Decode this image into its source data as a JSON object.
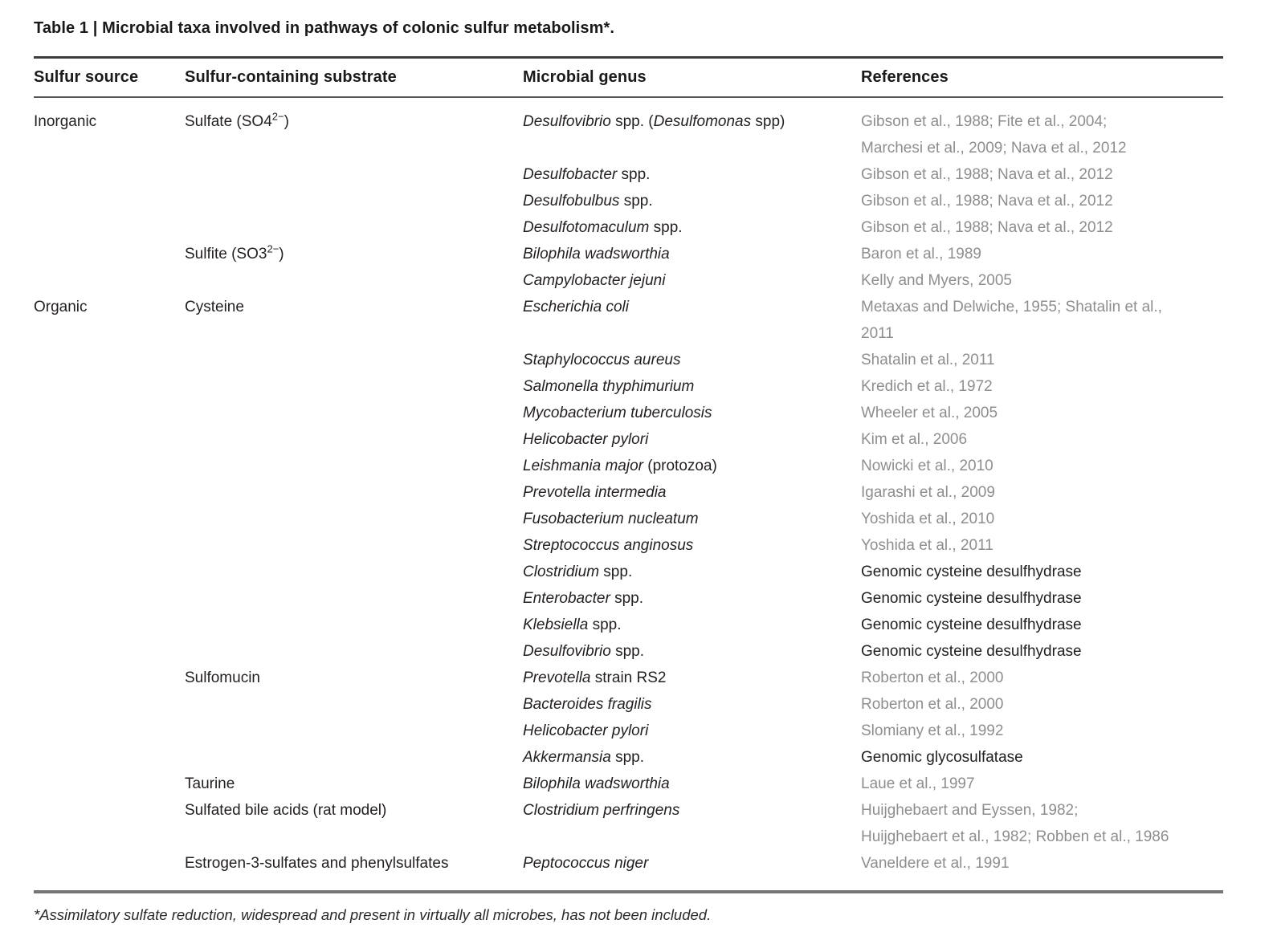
{
  "title": "Table 1 | Microbial taxa involved in pathways of colonic sulfur metabolism*.",
  "columns": [
    "Sulfur source",
    "Sulfur-containing substrate",
    "Microbial genus",
    "References"
  ],
  "footnote": "*Assimilatory sulfate reduction, widespread and present in virtually all microbes, has not been included.",
  "colors": {
    "reference_gray": "#8e8e8e",
    "body_black": "#231f20",
    "rule_dark": "#3d3d3d",
    "rule_light": "#757575"
  },
  "rows": [
    {
      "source": "Inorganic",
      "substrate": [
        [
          "Sulfate (SO4",
          "n"
        ],
        [
          "2−",
          "sup"
        ],
        [
          ")",
          "n"
        ]
      ],
      "genus": [
        [
          "Desulfovibrio",
          "i"
        ],
        [
          " spp. (",
          "n"
        ],
        [
          "Desulfomonas",
          "i"
        ],
        [
          " spp)",
          "n"
        ]
      ],
      "reference": "Gibson et al., 1988; Fite et al., 2004;\nMarchesi et al., 2009; Nava et al., 2012",
      "reference_style": "gray"
    },
    {
      "source": "",
      "substrate": [],
      "genus": [
        [
          "Desulfobacter",
          "i"
        ],
        [
          " spp.",
          "n"
        ]
      ],
      "reference": "Gibson et al., 1988; Nava et al., 2012",
      "reference_style": "gray"
    },
    {
      "source": "",
      "substrate": [],
      "genus": [
        [
          "Desulfobulbus",
          "i"
        ],
        [
          " spp.",
          "n"
        ]
      ],
      "reference": "Gibson et al., 1988; Nava et al., 2012",
      "reference_style": "gray"
    },
    {
      "source": "",
      "substrate": [],
      "genus": [
        [
          "Desulfotomaculum",
          "i"
        ],
        [
          " spp.",
          "n"
        ]
      ],
      "reference": "Gibson et al., 1988; Nava et al., 2012",
      "reference_style": "gray"
    },
    {
      "source": "",
      "substrate": [
        [
          "Sulfite (SO3",
          "n"
        ],
        [
          "2−",
          "sup"
        ],
        [
          ")",
          "n"
        ]
      ],
      "genus": [
        [
          "Bilophila wadsworthia",
          "i"
        ]
      ],
      "reference": "Baron et al., 1989",
      "reference_style": "gray"
    },
    {
      "source": "",
      "substrate": [],
      "genus": [
        [
          "Campylobacter jejuni",
          "i"
        ]
      ],
      "reference": "Kelly and Myers, 2005",
      "reference_style": "gray"
    },
    {
      "source": "Organic",
      "substrate": [
        [
          "Cysteine",
          "n"
        ]
      ],
      "genus": [
        [
          "Escherichia coli",
          "i"
        ]
      ],
      "reference": "Metaxas and Delwiche, 1955; Shatalin et al.,\n2011",
      "reference_style": "gray"
    },
    {
      "source": "",
      "substrate": [],
      "genus": [
        [
          "Staphylococcus aureus",
          "i"
        ]
      ],
      "reference": "Shatalin et al., 2011",
      "reference_style": "gray"
    },
    {
      "source": "",
      "substrate": [],
      "genus": [
        [
          "Salmonella thyphimurium",
          "i"
        ]
      ],
      "reference": "Kredich et al., 1972",
      "reference_style": "gray"
    },
    {
      "source": "",
      "substrate": [],
      "genus": [
        [
          "Mycobacterium tuberculosis",
          "i"
        ]
      ],
      "reference": "Wheeler et al., 2005",
      "reference_style": "gray"
    },
    {
      "source": "",
      "substrate": [],
      "genus": [
        [
          "Helicobacter pylori",
          "i"
        ]
      ],
      "reference": "Kim et al., 2006",
      "reference_style": "gray"
    },
    {
      "source": "",
      "substrate": [],
      "genus": [
        [
          "Leishmania major",
          "i"
        ],
        [
          " (protozoa)",
          "n"
        ]
      ],
      "reference": "Nowicki et al., 2010",
      "reference_style": "gray"
    },
    {
      "source": "",
      "substrate": [],
      "genus": [
        [
          "Prevotella intermedia",
          "i"
        ]
      ],
      "reference": "Igarashi et al., 2009",
      "reference_style": "gray"
    },
    {
      "source": "",
      "substrate": [],
      "genus": [
        [
          "Fusobacterium nucleatum",
          "i"
        ]
      ],
      "reference": "Yoshida et al., 2010",
      "reference_style": "gray"
    },
    {
      "source": "",
      "substrate": [],
      "genus": [
        [
          "Streptococcus anginosus",
          "i"
        ]
      ],
      "reference": "Yoshida et al., 2011",
      "reference_style": "gray"
    },
    {
      "source": "",
      "substrate": [],
      "genus": [
        [
          "Clostridium",
          "i"
        ],
        [
          " spp.",
          "n"
        ]
      ],
      "reference": "Genomic cysteine desulfhydrase",
      "reference_style": "dark"
    },
    {
      "source": "",
      "substrate": [],
      "genus": [
        [
          "Enterobacter",
          "i"
        ],
        [
          " spp.",
          "n"
        ]
      ],
      "reference": "Genomic cysteine desulfhydrase",
      "reference_style": "dark"
    },
    {
      "source": "",
      "substrate": [],
      "genus": [
        [
          "Klebsiella",
          "i"
        ],
        [
          " spp.",
          "n"
        ]
      ],
      "reference": "Genomic cysteine desulfhydrase",
      "reference_style": "dark"
    },
    {
      "source": "",
      "substrate": [],
      "genus": [
        [
          "Desulfovibrio",
          "i"
        ],
        [
          " spp.",
          "n"
        ]
      ],
      "reference": "Genomic cysteine desulfhydrase",
      "reference_style": "dark"
    },
    {
      "source": "",
      "substrate": [
        [
          "Sulfomucin",
          "n"
        ]
      ],
      "genus": [
        [
          "Prevotella",
          "i"
        ],
        [
          " strain RS2",
          "n"
        ]
      ],
      "reference": "Roberton et al., 2000",
      "reference_style": "gray"
    },
    {
      "source": "",
      "substrate": [],
      "genus": [
        [
          "Bacteroides fragilis",
          "i"
        ]
      ],
      "reference": "Roberton et al., 2000",
      "reference_style": "gray"
    },
    {
      "source": "",
      "substrate": [],
      "genus": [
        [
          "Helicobacter pylori",
          "i"
        ]
      ],
      "reference": "Slomiany et al., 1992",
      "reference_style": "gray"
    },
    {
      "source": "",
      "substrate": [],
      "genus": [
        [
          "Akkermansia",
          "i"
        ],
        [
          " spp.",
          "n"
        ]
      ],
      "reference": "Genomic glycosulfatase",
      "reference_style": "dark"
    },
    {
      "source": "",
      "substrate": [
        [
          "Taurine",
          "n"
        ]
      ],
      "genus": [
        [
          "Bilophila wadsworthia",
          "i"
        ]
      ],
      "reference": "Laue et al., 1997",
      "reference_style": "gray"
    },
    {
      "source": "",
      "substrate": [
        [
          "Sulfated bile acids (rat model)",
          "n"
        ]
      ],
      "genus": [
        [
          "Clostridium perfringens",
          "i"
        ]
      ],
      "reference": "Huijghebaert and Eyssen, 1982;\nHuijghebaert et al., 1982; Robben et al., 1986",
      "reference_style": "gray"
    },
    {
      "source": "",
      "substrate": [
        [
          "Estrogen-3-sulfates and phenylsulfates",
          "n"
        ]
      ],
      "genus": [
        [
          "Peptococcus niger",
          "i"
        ]
      ],
      "reference": "Vaneldere et al., 1991",
      "reference_style": "gray"
    }
  ]
}
